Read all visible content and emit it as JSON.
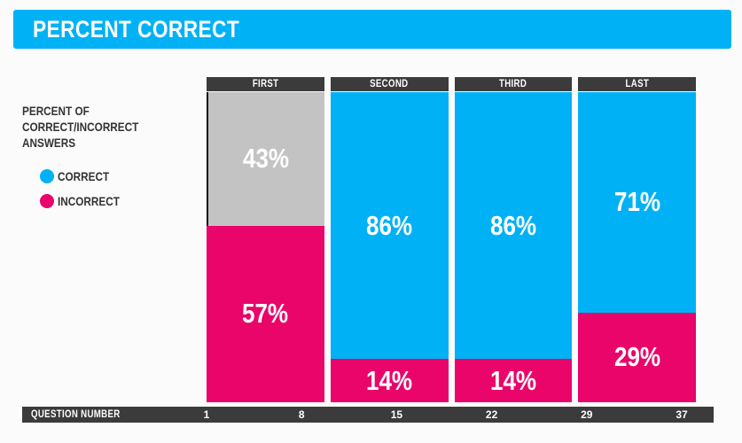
{
  "title": "PERCENT CORRECT",
  "colors": {
    "blue": "#00b2f5",
    "pink": "#e9056a",
    "gray": "#c3c3c3",
    "bar_dark": "#3b3b3b",
    "title_bg": "#00b2f5",
    "label_white": "#ffffff",
    "text_dark": "#333333"
  },
  "legend": {
    "heading_lines": [
      "PERCENT OF",
      "CORRECT/INCORRECT",
      "ANSWERS"
    ],
    "items": [
      {
        "label": "CORRECT",
        "color": "#00b2f5"
      },
      {
        "label": "INCORRECT",
        "color": "#e9056a"
      }
    ]
  },
  "x_axis": {
    "label": "QUESTION NUMBER",
    "ticks": [
      "1",
      "8",
      "15",
      "22",
      "29",
      "37"
    ]
  },
  "chart_data": {
    "type": "bar",
    "stacked": true,
    "units": "percent",
    "title": "PERCENT CORRECT",
    "categories": [
      "FIRST",
      "SECOND",
      "THIRD",
      "LAST"
    ],
    "series": [
      {
        "name": "CORRECT",
        "values": [
          43,
          86,
          86,
          71
        ]
      },
      {
        "name": "INCORRECT",
        "values": [
          57,
          14,
          14,
          29
        ]
      }
    ],
    "xlabel": "QUESTION NUMBER",
    "x_ticks": [
      "1",
      "8",
      "15",
      "22",
      "29",
      "37"
    ],
    "ylim": [
      0,
      100
    ],
    "legend_position": "left",
    "grid": false,
    "columns": [
      {
        "header": "FIRST",
        "segments": [
          {
            "series": "CORRECT",
            "label": "43%",
            "value": 43,
            "color": "#c3c3c3"
          },
          {
            "series": "INCORRECT",
            "label": "57%",
            "value": 57,
            "color": "#e9056a"
          }
        ]
      },
      {
        "header": "SECOND",
        "segments": [
          {
            "series": "CORRECT",
            "label": "86%",
            "value": 86,
            "color": "#00b2f5"
          },
          {
            "series": "INCORRECT",
            "label": "14%",
            "value": 14,
            "color": "#e9056a"
          }
        ]
      },
      {
        "header": "THIRD",
        "segments": [
          {
            "series": "CORRECT",
            "label": "86%",
            "value": 86,
            "color": "#00b2f5"
          },
          {
            "series": "INCORRECT",
            "label": "14%",
            "value": 14,
            "color": "#e9056a"
          }
        ]
      },
      {
        "header": "LAST",
        "segments": [
          {
            "series": "CORRECT",
            "label": "71%",
            "value": 71,
            "color": "#00b2f5"
          },
          {
            "series": "INCORRECT",
            "label": "29%",
            "value": 29,
            "color": "#e9056a"
          }
        ]
      }
    ]
  }
}
